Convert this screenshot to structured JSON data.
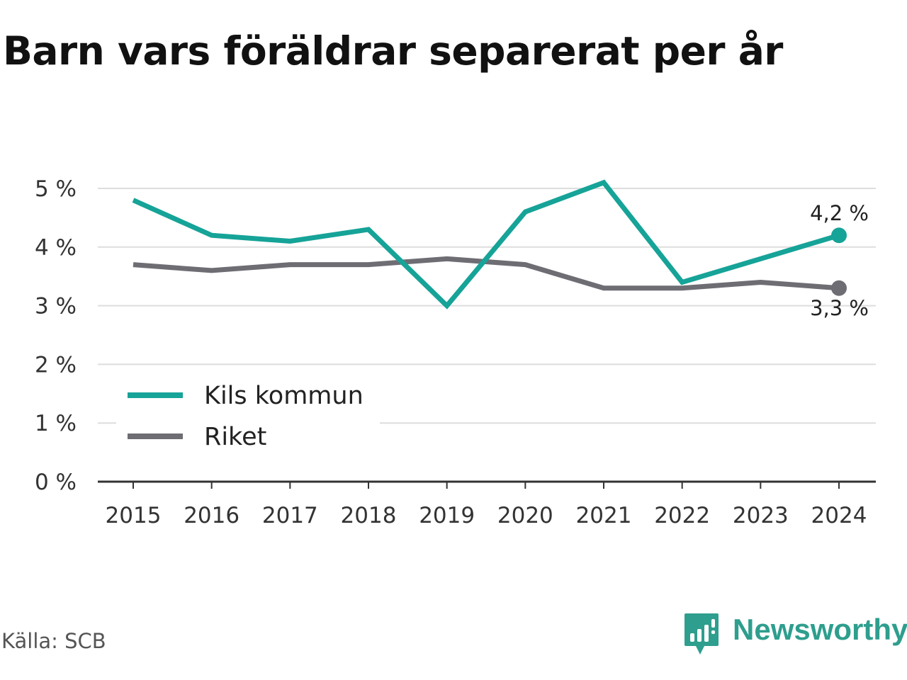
{
  "header": {
    "title": "Barn vars föräldrar separerat per år"
  },
  "footer": {
    "source": "Källa: SCB",
    "brand": "Newsworthy"
  },
  "chart_data": {
    "type": "line",
    "title": "Barn vars föräldrar separerat per år",
    "x": [
      "2015",
      "2016",
      "2017",
      "2018",
      "2019",
      "2020",
      "2021",
      "2022",
      "2023",
      "2024"
    ],
    "series": [
      {
        "name": "Kils kommun",
        "color": "#16a398",
        "values": [
          4.8,
          4.2,
          4.1,
          4.3,
          3.0,
          4.6,
          5.1,
          3.4,
          3.8,
          4.2
        ],
        "end_label": "4,2 %"
      },
      {
        "name": "Riket",
        "color": "#6e6d73",
        "values": [
          3.7,
          3.6,
          3.7,
          3.7,
          3.8,
          3.7,
          3.3,
          3.3,
          3.4,
          3.3
        ],
        "end_label": "3,3 %"
      }
    ],
    "ylim": [
      0,
      5
    ],
    "yticks": [
      0,
      1,
      2,
      3,
      4,
      5
    ],
    "ytick_labels": [
      "0 %",
      "1 %",
      "2 %",
      "3 %",
      "4 %",
      "5 %"
    ],
    "xlabel": "",
    "ylabel": "",
    "grid": true,
    "legend_position": "bottom-left"
  },
  "colors": {
    "brand": "#2e9e8e",
    "grid": "#dddddd",
    "axis": "#333333"
  }
}
